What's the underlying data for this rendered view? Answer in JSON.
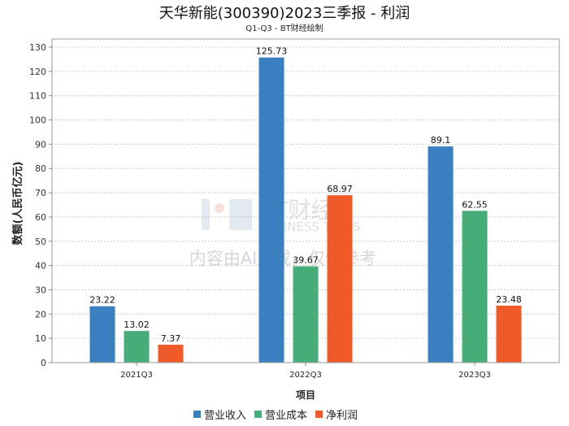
{
  "chart_data": {
    "type": "bar",
    "title": "天华新能(300390)2023三季报 - 利润",
    "subtitle": "Q1-Q3 - BT财经绘制",
    "xlabel": "项目",
    "ylabel": "数额(人民币亿元)",
    "categories": [
      "2021Q3",
      "2022Q3",
      "2023Q3"
    ],
    "series": [
      {
        "name": "营业收入",
        "color": "#3a80c0",
        "values": [
          23.22,
          125.73,
          89.1
        ]
      },
      {
        "name": "营业成本",
        "color": "#46ac78",
        "values": [
          13.02,
          39.67,
          62.55
        ]
      },
      {
        "name": "净利润",
        "color": "#f05a28",
        "values": [
          7.37,
          68.97,
          23.48
        ]
      }
    ],
    "ylim": [
      0,
      130
    ],
    "yticks": [
      0,
      10,
      20,
      30,
      40,
      50,
      60,
      70,
      80,
      90,
      100,
      110,
      120,
      130
    ],
    "grid": true,
    "legend": "bottom"
  },
  "watermark": {
    "brand": "BT财经",
    "brand_en": "BUSINESS TIMES",
    "notice": "内容由AI生成，仅供参考"
  }
}
